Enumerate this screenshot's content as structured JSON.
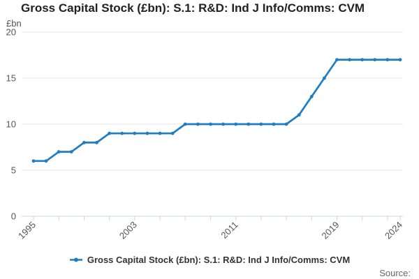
{
  "header": {
    "title": "Gross Capital Stock (£bn): S.1: R&D: Ind J Info/Comms: CVM"
  },
  "legend": {
    "marker_icon": "line-dot-marker",
    "label": "Gross Capital Stock (£bn): S.1: R&D: Ind J Info/Comms: CVM"
  },
  "footer": {
    "source_label": "Source:"
  },
  "colors": {
    "series": "#1e7dc3",
    "grid": "#e6e6e6",
    "axis": "#ccd6e3",
    "tick_label": "#555555",
    "unit_label": "#555555",
    "title": "#222222",
    "legend_text": "#333333",
    "source": "#666666",
    "background": "#ffffff"
  },
  "chart_data": {
    "type": "line",
    "title": "Gross Capital Stock (£bn): S.1: R&D: Ind J Info/Comms: CVM",
    "unit_label": "£bn",
    "xlabel": "",
    "ylabel": "£bn",
    "ylim": [
      0,
      20
    ],
    "yticks": [
      0,
      5,
      10,
      15,
      20
    ],
    "grid": "horizontal",
    "legend_position": "bottom",
    "marker": "circle",
    "xticks": [
      1995,
      1997,
      1999,
      2001,
      2003,
      2005,
      2007,
      2009,
      2011,
      2013,
      2015,
      2017,
      2019,
      2021,
      2023,
      2024
    ],
    "xtick_labels": [
      {
        "year": 1995,
        "label": "1995"
      },
      {
        "year": 2003,
        "label": "2003"
      },
      {
        "year": 2011,
        "label": "2011"
      },
      {
        "year": 2019,
        "label": "2019"
      },
      {
        "year": 2024,
        "label": "2024"
      }
    ],
    "series": [
      {
        "name": "Gross Capital Stock (£bn): S.1: R&D: Ind J Info/Comms: CVM",
        "x": [
          1995,
          1996,
          1997,
          1998,
          1999,
          2000,
          2001,
          2002,
          2003,
          2004,
          2005,
          2006,
          2007,
          2008,
          2009,
          2010,
          2011,
          2012,
          2013,
          2014,
          2015,
          2016,
          2017,
          2018,
          2019,
          2020,
          2021,
          2022,
          2023,
          2024
        ],
        "values": [
          6,
          6,
          7,
          7,
          8,
          8,
          9,
          9,
          9,
          9,
          9,
          9,
          10,
          10,
          10,
          10,
          10,
          10,
          10,
          10,
          10,
          11,
          13,
          15,
          17,
          17,
          17,
          17,
          17,
          17
        ]
      }
    ]
  }
}
